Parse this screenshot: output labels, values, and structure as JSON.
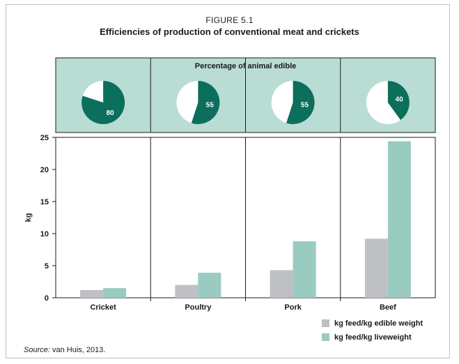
{
  "figure": {
    "label": "FIGURE 5.1",
    "title": "Efficiencies of production of conventional meat and crickets",
    "source_prefix": "Source:",
    "source_text": " van Huis, 2013."
  },
  "colors": {
    "band_bg": "#b9dcd4",
    "pie_fill": "#0b6f5c",
    "pie_rest": "#ffffff",
    "edible_bar": "#bfc0c4",
    "live_bar": "#9acbc1",
    "border": "#1a1a1a"
  },
  "pies": {
    "title": "Percentage of animal edible",
    "items": [
      {
        "category": "Cricket",
        "value": 80,
        "label": "80"
      },
      {
        "category": "Poultry",
        "value": 55,
        "label": "55"
      },
      {
        "category": "Pork",
        "value": 55,
        "label": "55"
      },
      {
        "category": "Beef",
        "value": 40,
        "label": "40"
      }
    ]
  },
  "chart_data": {
    "type": "bar",
    "categories": [
      "Cricket",
      "Poultry",
      "Pork",
      "Beef"
    ],
    "series": [
      {
        "name": "kg feed/kg edible weight",
        "values": [
          1.2,
          2.0,
          4.3,
          9.2
        ]
      },
      {
        "name": "kg feed/kg liveweight",
        "values": [
          1.5,
          3.9,
          8.8,
          24.4
        ]
      }
    ],
    "ylabel": "kg",
    "ylim": [
      0,
      25
    ],
    "yticks": [
      0,
      5,
      10,
      15,
      20,
      25
    ],
    "grid": false,
    "legend": "bottom-right"
  }
}
